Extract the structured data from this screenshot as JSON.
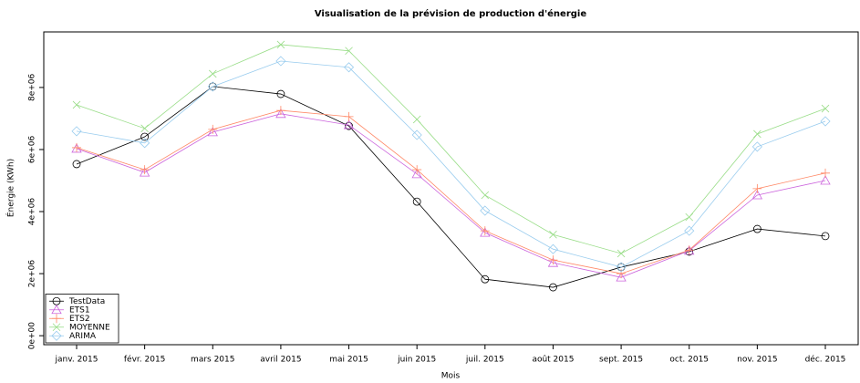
{
  "chart_data": {
    "type": "line",
    "title": "Visualisation de la prévision de production d'énergie",
    "x_label": "Mois",
    "y_label": "Énergie (KWh)",
    "categories": [
      "janv. 2015",
      "févr. 2015",
      "mars 2015",
      "avril 2015",
      "mai 2015",
      "juin 2015",
      "juil. 2015",
      "août 2015",
      "sept. 2015",
      "oct. 2015",
      "nov. 2015",
      "déc. 2015"
    ],
    "series": [
      {
        "name": "TestData",
        "color": "#000000",
        "marker": "circle",
        "values": [
          5530000,
          6410000,
          8030000,
          7790000,
          6760000,
          4320000,
          1820000,
          1560000,
          2210000,
          2710000,
          3440000,
          3210000
        ]
      },
      {
        "name": "ETS1",
        "color": "#cc66dd",
        "marker": "triangle",
        "values": [
          6030000,
          5260000,
          6560000,
          7150000,
          6790000,
          5210000,
          3320000,
          2350000,
          1880000,
          2740000,
          4530000,
          5000000
        ]
      },
      {
        "name": "ETS2",
        "color": "#ff8866",
        "marker": "plus",
        "values": [
          6060000,
          5350000,
          6650000,
          7260000,
          7060000,
          5350000,
          3380000,
          2440000,
          2000000,
          2760000,
          4740000,
          5240000
        ]
      },
      {
        "name": "MOYENNE",
        "color": "#99dd88",
        "marker": "cross",
        "values": [
          7440000,
          6680000,
          8440000,
          9380000,
          9180000,
          6970000,
          4530000,
          3260000,
          2650000,
          3820000,
          6500000,
          7320000
        ]
      },
      {
        "name": "ARIMA",
        "color": "#99ccee",
        "marker": "diamond",
        "values": [
          6590000,
          6210000,
          8030000,
          8850000,
          8650000,
          6470000,
          4030000,
          2790000,
          2210000,
          3380000,
          6090000,
          6910000
        ]
      }
    ],
    "ylim": [
      -290000,
      9790000
    ],
    "yticks": [
      {
        "value": 0,
        "label": "0e+00"
      },
      {
        "value": 2000000,
        "label": "2e+06"
      },
      {
        "value": 4000000,
        "label": "4e+06"
      },
      {
        "value": 6000000,
        "label": "6e+06"
      },
      {
        "value": 8000000,
        "label": "8e+06"
      }
    ],
    "legend_position": "bottom-left"
  }
}
